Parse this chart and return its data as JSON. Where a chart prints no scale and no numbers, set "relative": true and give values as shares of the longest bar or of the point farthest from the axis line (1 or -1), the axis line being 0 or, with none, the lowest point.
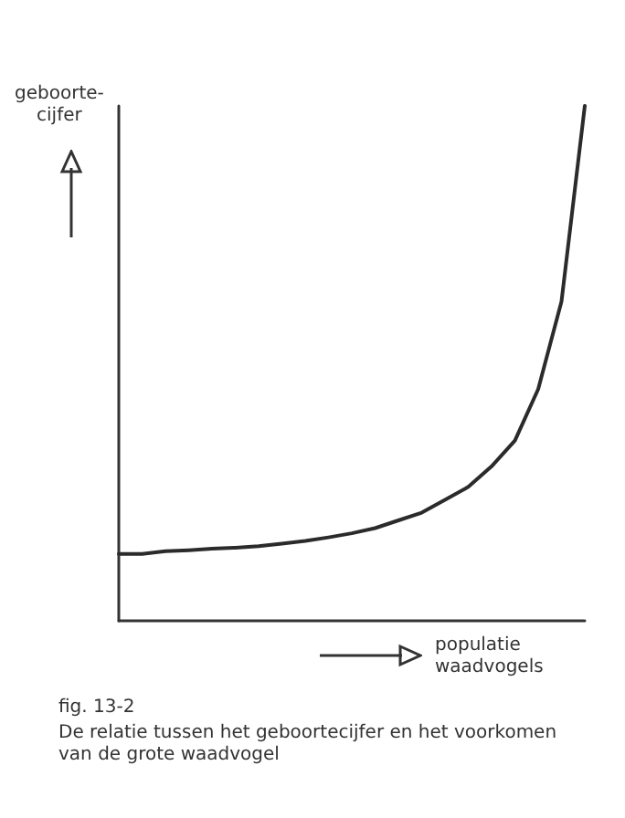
{
  "chart_data": {
    "type": "line",
    "relative": true,
    "xlabel": "populatie\nwaadvogels",
    "ylabel": "geboorte-\ncijfer",
    "categories": [
      null,
      null,
      null,
      null,
      null,
      null,
      null,
      null,
      null,
      null,
      null,
      null,
      null,
      null,
      null,
      null,
      null,
      null,
      null,
      null,
      null
    ],
    "series": [
      {
        "color": "#2b2b2b",
        "values": [
          0.13,
          0.13,
          0.135,
          0.137,
          0.14,
          0.142,
          0.145,
          0.15,
          0.155,
          0.162,
          0.17,
          0.18,
          0.195,
          0.21,
          0.235,
          0.26,
          0.3,
          0.35,
          0.45,
          0.62,
          1
        ]
      }
    ],
    "annotations": [
      "fig. 13-2",
      "De relatie tussen het geboortecijfer en het voorkomen van de grote waadvogel"
    ],
    "marker": "none",
    "line_style": "solid"
  }
}
